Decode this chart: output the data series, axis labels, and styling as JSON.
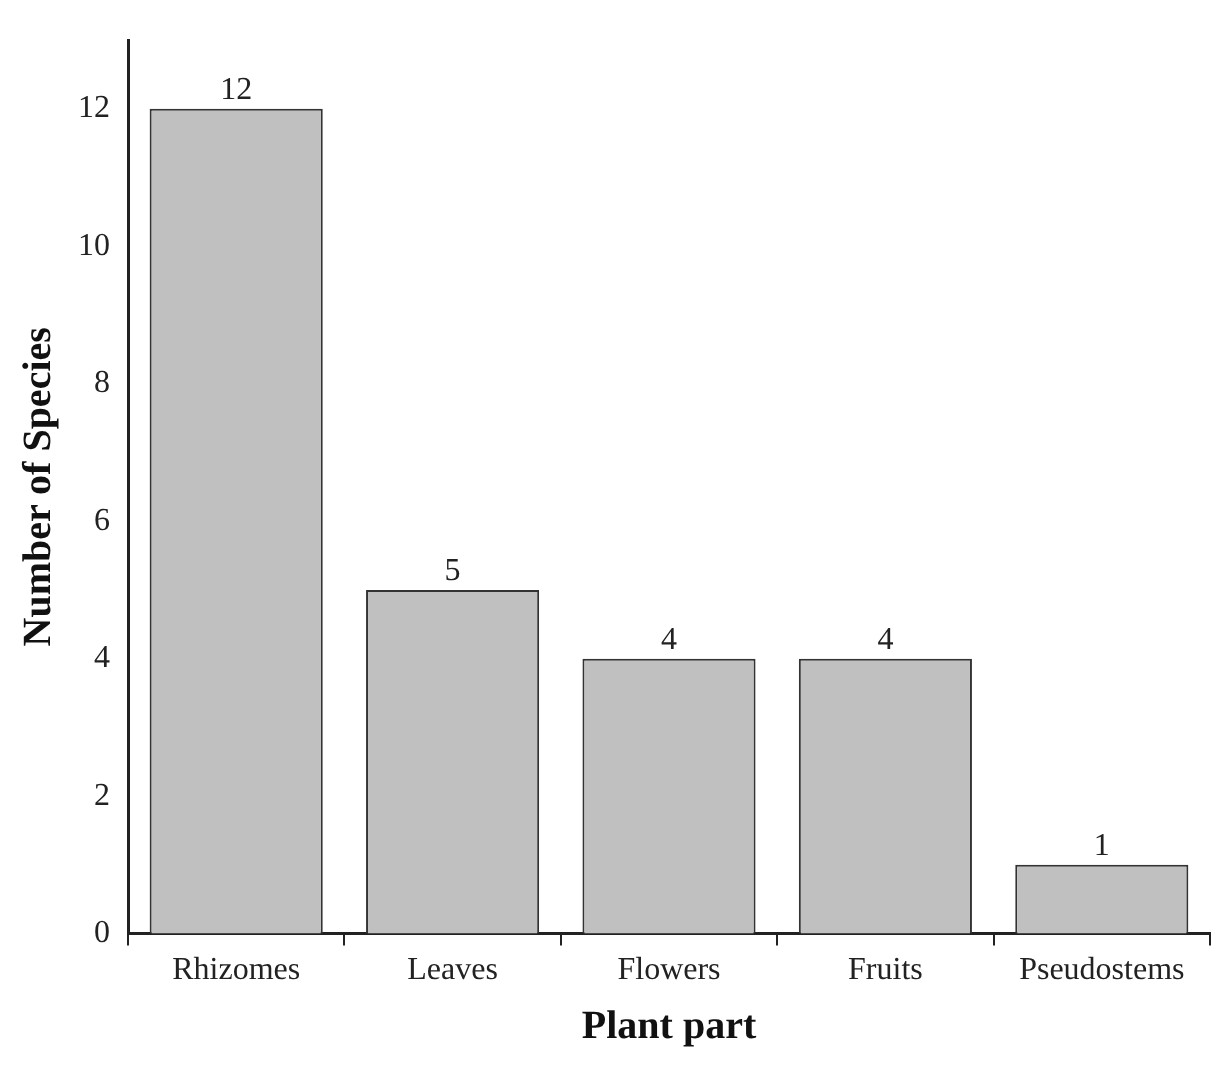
{
  "chart_data": {
    "type": "bar",
    "xlabel": "Plant part",
    "ylabel": "Number of Species",
    "categories": [
      "Rhizomes",
      "Leaves",
      "Flowers",
      "Fruits",
      "Pseudostems"
    ],
    "values": [
      12,
      5,
      4,
      4,
      1
    ],
    "color": "#c0c0c0",
    "ylim": [
      0,
      13
    ],
    "yticks": [
      0,
      2,
      4,
      6,
      8,
      10,
      12
    ],
    "grid": false,
    "data_labels": true
  }
}
